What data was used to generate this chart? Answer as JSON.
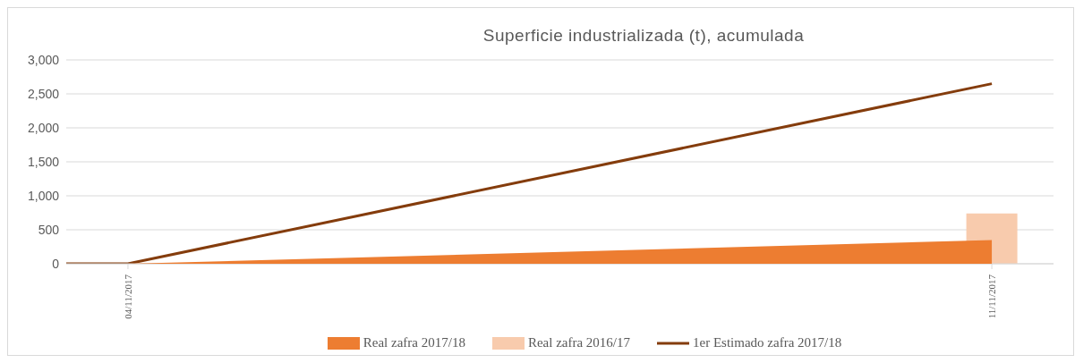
{
  "chart_data": {
    "type": "area",
    "title": "Superficie industrializada (t), acumulada",
    "xlim": [
      "2017-11-03T12:00",
      "2017-11-11T12:00"
    ],
    "xticks": [
      {
        "value": "2017-11-04",
        "label": "04/11/2017"
      },
      {
        "value": "2017-11-11",
        "label": "11/11/2017"
      }
    ],
    "ylim": [
      0,
      3000
    ],
    "yticks": [
      {
        "value": 0,
        "label": "0"
      },
      {
        "value": 500,
        "label": "500"
      },
      {
        "value": 1000,
        "label": "1,000"
      },
      {
        "value": 1500,
        "label": "1,500"
      },
      {
        "value": 2000,
        "label": "2,000"
      },
      {
        "value": 2500,
        "label": "2,500"
      },
      {
        "value": 3000,
        "label": "3,000"
      }
    ],
    "grid": "y",
    "legend": "bottom",
    "marker": "none",
    "series": [
      {
        "name": "Real zafra 2017/18",
        "color": "#ed7d31",
        "x": [
          "2017-11-04",
          "2017-11-11"
        ],
        "values": [
          0,
          350
        ]
      },
      {
        "name": "Real zafra 2016/17",
        "type": "bar",
        "color": "#f8cbad",
        "x": [
          "2017-11-11"
        ],
        "values": [
          740
        ]
      },
      {
        "name": "1er Estimado zafra 2017/18",
        "type": "line",
        "color": "#843c0c",
        "x": [
          "2017-11-03T12:00",
          "2017-11-04",
          "2017-11-11"
        ],
        "values": [
          0,
          0,
          2650
        ]
      }
    ]
  }
}
